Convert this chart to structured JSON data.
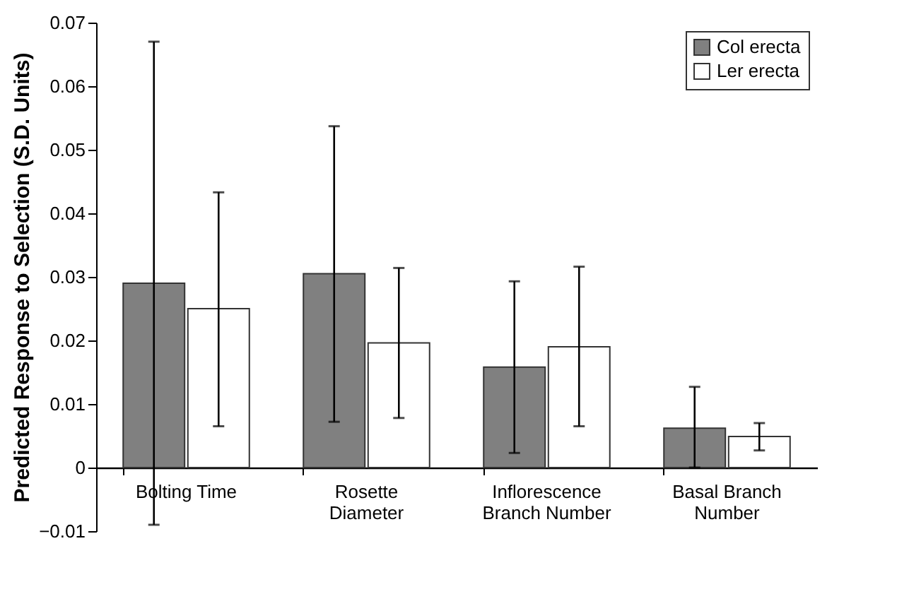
{
  "chart_data": {
    "type": "bar",
    "ylabel": "Predicted Response to Selection (S.D. Units)",
    "categories": [
      "Bolting Time",
      "Rosette Diameter",
      "Inflorescence Branch Number",
      "Basal Branch Number"
    ],
    "series": [
      {
        "name": "Col erecta",
        "color": "#808080",
        "values": [
          0.029,
          0.0305,
          0.0158,
          0.0062
        ],
        "errors": [
          [
            -0.009,
            0.067
          ],
          [
            0.0072,
            0.0537
          ],
          [
            0.0023,
            0.0293
          ],
          [
            0,
            0.0127
          ]
        ]
      },
      {
        "name": "Ler erecta",
        "color": "#ffffff",
        "values": [
          0.025,
          0.0196,
          0.019,
          0.0049
        ],
        "errors": [
          [
            0.0065,
            0.0433
          ],
          [
            0.0078,
            0.0314
          ],
          [
            0.0065,
            0.0316
          ],
          [
            0.0027,
            0.007
          ]
        ]
      }
    ],
    "ylim": [
      -0.01,
      0.07
    ],
    "yticks": [
      -0.01,
      0,
      0.01,
      0.02,
      0.03,
      0.04,
      0.05,
      0.06,
      0.07
    ],
    "grid": false,
    "legend": "top right"
  }
}
